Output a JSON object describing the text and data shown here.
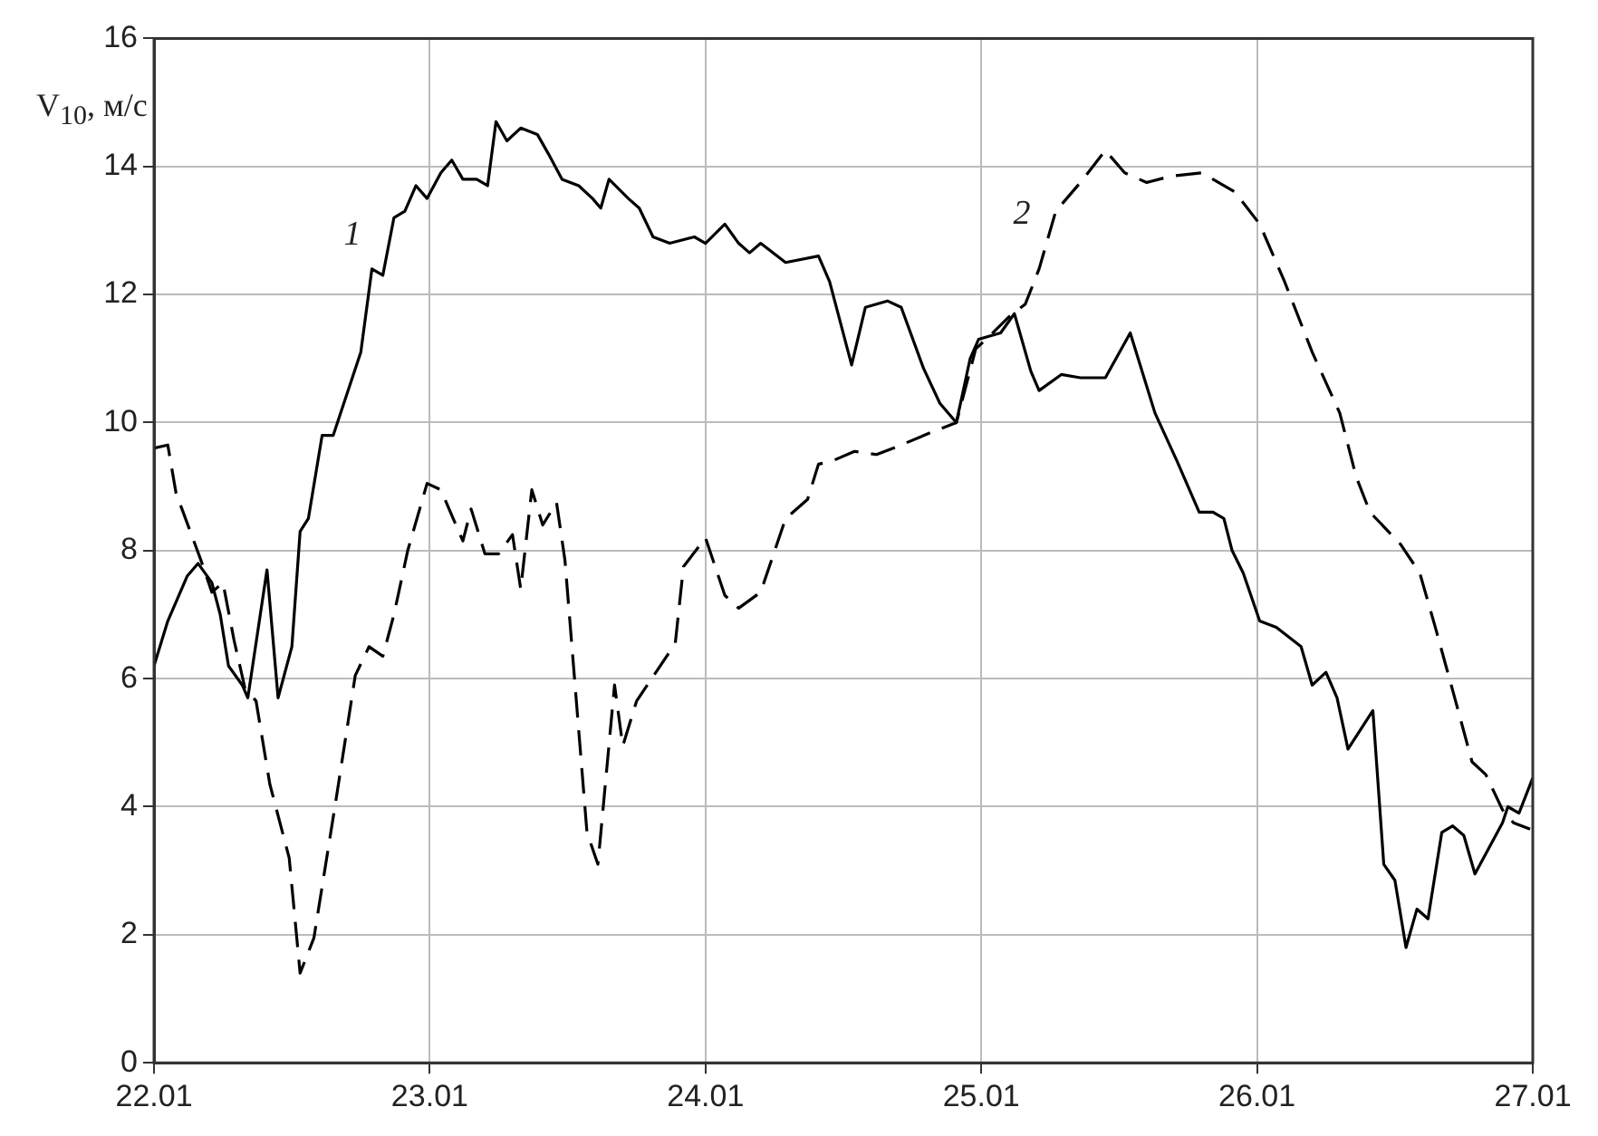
{
  "chart_data": {
    "type": "line",
    "ylabel": "V$_{10}$, м/с",
    "xlim": [
      "--01-22",
      "--01-27"
    ],
    "xticks": [
      {
        "value": "--01-22",
        "label": "22.01"
      },
      {
        "value": "--01-23",
        "label": "23.01"
      },
      {
        "value": "--01-24",
        "label": "24.01"
      },
      {
        "value": "--01-25",
        "label": "25.01"
      },
      {
        "value": "--01-26",
        "label": "26.01"
      },
      {
        "value": "--01-27",
        "label": "27.01"
      }
    ],
    "ylim": [
      0,
      16
    ],
    "yticks": [
      0,
      2,
      4,
      6,
      8,
      10,
      12,
      14,
      16
    ],
    "grid": true,
    "legend": false,
    "marker": "none",
    "series": [
      {
        "name": "1",
        "color": "#000000",
        "line_style": "solid",
        "x": [
          "--01-22T00:00",
          "--01-22T01:12",
          "--01-22T02:53",
          "--01-22T03:50",
          "--01-22T05:02",
          "--01-22T05:46",
          "--01-22T06:29",
          "--01-22T07:41",
          "--01-22T08:10",
          "--01-22T09:50",
          "--01-22T10:48",
          "--01-22T12:00",
          "--01-22T12:43",
          "--01-22T13:26",
          "--01-22T14:38",
          "--01-22T15:36",
          "--01-22T18:00",
          "--01-22T18:58",
          "--01-22T19:55",
          "--01-22T20:53",
          "--01-22T21:50",
          "--01-22T22:48",
          "--01-22T23:46",
          "--01-23T00:58",
          "--01-23T01:55",
          "--01-23T02:53",
          "--01-23T04:05",
          "--01-23T05:02",
          "--01-23T05:46",
          "--01-23T06:43",
          "--01-23T07:55",
          "--01-23T09:22",
          "--01-23T10:19",
          "--01-23T11:31",
          "--01-23T12:58",
          "--01-23T14:10",
          "--01-23T14:53",
          "--01-23T15:36",
          "--01-23T17:17",
          "--01-23T18:14",
          "--01-23T19:26",
          "--01-23T20:53",
          "--01-23T23:02",
          "--01-24T00:00",
          "--01-24T01:41",
          "--01-24T02:53",
          "--01-24T03:50",
          "--01-24T04:48",
          "--01-24T06:58",
          "--01-24T09:50",
          "--01-24T10:48",
          "--01-24T12:43",
          "--01-24T13:55",
          "--01-24T15:50",
          "--01-24T17:02",
          "--01-24T18:58",
          "--01-24T20:24",
          "--01-24T21:50",
          "--01-24T23:02",
          "--01-24T23:46",
          "--01-25T01:41",
          "--01-25T02:53",
          "--01-25T04:19",
          "--01-25T05:02",
          "--01-25T06:58",
          "--01-25T08:38",
          "--01-25T10:48",
          "--01-25T12:58",
          "--01-25T15:07",
          "--01-25T17:02",
          "--01-25T18:58",
          "--01-25T20:10",
          "--01-25T21:07",
          "--01-25T21:50",
          "--01-25T22:48",
          "--01-26T00:14",
          "--01-26T01:41",
          "--01-26T03:50",
          "--01-26T04:48",
          "--01-26T06:00",
          "--01-26T06:58",
          "--01-26T07:55",
          "--01-26T10:05",
          "--01-26T11:02",
          "--01-26T12:00",
          "--01-26T12:58",
          "--01-26T13:55",
          "--01-26T14:53",
          "--01-26T16:05",
          "--01-26T17:02",
          "--01-26T18:00",
          "--01-26T18:58",
          "--01-26T21:22",
          "--01-26T21:50",
          "--01-26T22:48",
          "--01-27T00:00"
        ],
        "values": [
          6.2,
          6.9,
          7.6,
          7.8,
          7.5,
          7.0,
          6.2,
          5.9,
          5.7,
          7.7,
          5.7,
          6.5,
          8.3,
          8.5,
          9.8,
          9.8,
          11.1,
          12.4,
          12.3,
          13.2,
          13.3,
          13.7,
          13.5,
          13.9,
          14.1,
          13.8,
          13.8,
          13.7,
          14.7,
          14.4,
          14.6,
          14.5,
          14.2,
          13.8,
          13.7,
          13.5,
          13.35,
          13.8,
          13.5,
          13.35,
          12.9,
          12.8,
          12.9,
          12.8,
          13.1,
          12.8,
          12.65,
          12.8,
          12.5,
          12.6,
          12.2,
          10.9,
          11.8,
          11.9,
          11.8,
          10.85,
          10.3,
          10.0,
          11.0,
          11.3,
          11.4,
          11.7,
          10.8,
          10.5,
          10.75,
          10.7,
          10.7,
          11.4,
          10.15,
          9.4,
          8.6,
          8.6,
          8.5,
          8.0,
          7.65,
          6.9,
          6.8,
          6.5,
          5.9,
          6.1,
          5.7,
          4.9,
          5.5,
          3.1,
          2.85,
          1.8,
          2.4,
          2.25,
          3.6,
          3.7,
          3.55,
          2.95,
          3.75,
          4.0,
          3.9,
          4.45
        ]
      },
      {
        "name": "2",
        "color": "#000000",
        "line_style": "dashed",
        "x": [
          "--01-22T00:00",
          "--01-22T01:12",
          "--01-22T01:55",
          "--01-22T04:05",
          "--01-22T05:02",
          "--01-22T06:00",
          "--01-22T06:58",
          "--01-22T07:55",
          "--01-22T08:53",
          "--01-22T10:05",
          "--01-22T11:46",
          "--01-22T12:43",
          "--01-22T13:55",
          "--01-22T15:50",
          "--01-22T17:31",
          "--01-22T18:43",
          "--01-22T19:55",
          "--01-22T20:53",
          "--01-22T22:05",
          "--01-22T23:46",
          "--01-23T00:58",
          "--01-23T02:53",
          "--01-23T03:36",
          "--01-23T04:48",
          "--01-23T06:00",
          "--01-23T07:12",
          "--01-23T07:55",
          "--01-23T08:53",
          "--01-23T09:50",
          "--01-23T11:02",
          "--01-23T11:46",
          "--01-23T13:41",
          "--01-23T14:38",
          "--01-23T16:05",
          "--01-23T16:48",
          "--01-23T18:00",
          "--01-23T21:22",
          "--01-23T22:05",
          "--01-24T00:00",
          "--01-24T01:41",
          "--01-24T02:53",
          "--01-24T04:48",
          "--01-24T06:58",
          "--01-24T08:53",
          "--01-24T09:50",
          "--01-24T11:02",
          "--01-24T12:58",
          "--01-24T14:53",
          "--01-24T17:02",
          "--01-24T19:41",
          "--01-24T21:50",
          "--01-24T23:31",
          "--01-25T00:43",
          "--01-25T02:24",
          "--01-25T03:50",
          "--01-25T05:02",
          "--01-25T06:29",
          "--01-25T08:38",
          "--01-25T10:48",
          "--01-25T12:29",
          "--01-25T14:24",
          "--01-25T16:34",
          "--01-25T19:12",
          "--01-25T22:05",
          "--01-26T00:14",
          "--01-26T02:24",
          "--01-26T04:48",
          "--01-26T07:12",
          "--01-26T08:38",
          "--01-26T09:50",
          "--01-26T12:29",
          "--01-26T14:10",
          "--01-26T15:36",
          "--01-26T17:17",
          "--01-26T18:43",
          "--01-26T19:55",
          "--01-26T21:22",
          "--01-26T22:19",
          "--01-26T23:46"
        ],
        "values": [
          9.6,
          9.65,
          8.9,
          7.85,
          7.35,
          7.5,
          6.6,
          5.85,
          5.65,
          4.35,
          3.2,
          1.4,
          1.95,
          4.1,
          6.05,
          6.5,
          6.35,
          7.0,
          8.0,
          9.05,
          8.95,
          8.15,
          8.65,
          7.95,
          7.95,
          8.25,
          7.4,
          8.95,
          8.4,
          8.75,
          7.85,
          3.6,
          3.1,
          5.9,
          4.95,
          5.65,
          6.55,
          7.75,
          8.2,
          7.3,
          7.1,
          7.35,
          8.5,
          8.8,
          9.35,
          9.4,
          9.55,
          9.5,
          9.65,
          9.85,
          10.0,
          11.15,
          11.35,
          11.65,
          11.85,
          12.4,
          13.3,
          13.75,
          14.25,
          13.9,
          13.75,
          13.85,
          13.9,
          13.6,
          13.1,
          12.2,
          11.1,
          10.15,
          9.15,
          8.6,
          8.1,
          7.65,
          6.75,
          5.65,
          4.7,
          4.5,
          3.95,
          3.75,
          3.65
        ]
      }
    ]
  }
}
